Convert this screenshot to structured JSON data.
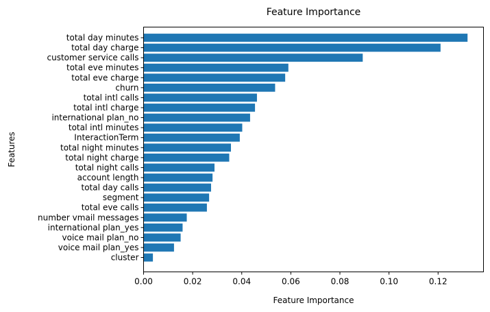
{
  "chart_data": {
    "type": "bar",
    "orientation": "horizontal",
    "title": "Feature Importance",
    "xlabel": "Feature Importance",
    "ylabel": "Features",
    "xlim": [
      0,
      0.1385
    ],
    "xticks": [
      0.0,
      0.02,
      0.04,
      0.06,
      0.08,
      0.1,
      0.12
    ],
    "xtick_labels": [
      "0.00",
      "0.02",
      "0.04",
      "0.06",
      "0.08",
      "0.10",
      "0.12"
    ],
    "grid": false,
    "bar_color": "#1f77b4",
    "categories": [
      "total day minutes",
      "total day charge",
      "customer service calls",
      "total eve minutes",
      "total eve charge",
      "churn",
      "total intl calls",
      "total intl charge",
      "international plan_no",
      "total intl minutes",
      "InteractionTerm",
      "total night minutes",
      "total night charge",
      "total night calls",
      "account length",
      "total day calls",
      "segment",
      "total eve calls",
      "number vmail messages",
      "international plan_yes",
      "voice mail plan_no",
      "voice mail plan_yes",
      "cluster"
    ],
    "values": [
      0.132,
      0.121,
      0.0893,
      0.059,
      0.0577,
      0.0536,
      0.0462,
      0.0454,
      0.0434,
      0.0402,
      0.0392,
      0.0356,
      0.0349,
      0.0289,
      0.0281,
      0.0275,
      0.0267,
      0.0258,
      0.0176,
      0.0159,
      0.0151,
      0.0124,
      0.0038
    ]
  }
}
